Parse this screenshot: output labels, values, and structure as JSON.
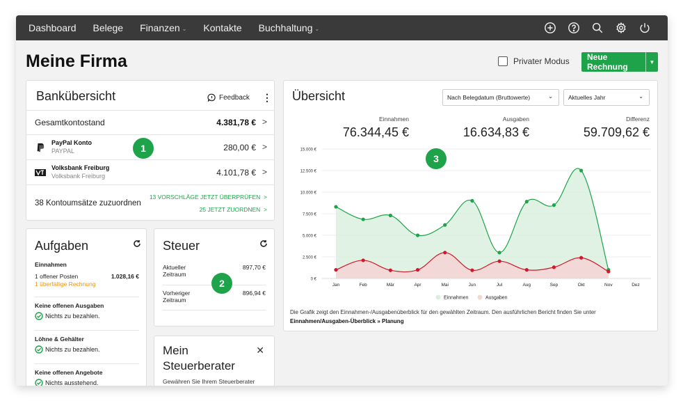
{
  "nav": {
    "items": [
      {
        "label": "Dashboard",
        "dropdown": false
      },
      {
        "label": "Belege",
        "dropdown": false
      },
      {
        "label": "Finanzen",
        "dropdown": true
      },
      {
        "label": "Kontakte",
        "dropdown": false
      },
      {
        "label": "Buchhaltung",
        "dropdown": true
      }
    ],
    "icons": [
      "plus-circle-icon",
      "help-icon",
      "search-icon",
      "gear-icon",
      "power-icon"
    ]
  },
  "page": {
    "title": "Meine Firma",
    "private_mode_label": "Privater Modus",
    "new_invoice_label": "Neue Rechnung"
  },
  "bank": {
    "title": "Banküber­sicht",
    "feedback_label": "Feedback",
    "total_label": "Gesamtkontostand",
    "total_value": "4.381,78 €",
    "accounts": [
      {
        "name": "PayPal Konto",
        "sub": "PAYPAL",
        "amount": "280,00 €",
        "logo": "paypal-logo-icon"
      },
      {
        "name": "Volksbank Freiburg",
        "sub": "Volksbank Freiburg",
        "amount": "4.101,78 €",
        "logo": "volksbank-logo-icon"
      }
    ],
    "unassigned_label": "38 Kontoumsätze zuzuordnen",
    "action_review": "13 VORSCHLÄGE JETZT ÜBERPRÜFEN",
    "action_assign": "25 JETZT ZUORDNEN"
  },
  "badges": [
    "1",
    "2",
    "3"
  ],
  "tasks": {
    "title": "Aufgaben",
    "income_heading": "Einnahmen",
    "open_items_label": "1 offener Posten",
    "open_items_value": "1.028,16 €",
    "overdue_label": "1 überfällige Rechnung",
    "expenses_heading": "Keine offenen Ausgaben",
    "expenses_status": "Nichts zu bezahlen.",
    "wages_heading": "Löhne & Gehälter",
    "wages_status": "Nichts zu bezahlen.",
    "offers_heading": "Keine offenen Angebote",
    "offers_status": "Nichts ausstehend."
  },
  "tax": {
    "title": "Steuer",
    "current_label": "Aktueller Zeitraum",
    "current_value": "897,70 €",
    "previous_label": "Vorheriger Zeitraum",
    "previous_value": "896,94 €"
  },
  "advisor": {
    "title": "Mein Steuerberater",
    "description": "Gewähren Sie Ihrem Steuerberater"
  },
  "overview": {
    "title": "Übersicht",
    "filter_select": "Nach Belegdatum (Bruttowerte)",
    "period_select": "Aktuelles Jahr",
    "kpis": [
      {
        "label": "Einnahmen",
        "value": "76.344,45 €"
      },
      {
        "label": "Ausgaben",
        "value": "16.634,83 €"
      },
      {
        "label": "Differenz",
        "value": "59.709,62 €"
      }
    ],
    "footer_text": "Die Grafik zeigt den Einnahmen-/Ausgabenüberblick für den gewählten Zeitraum. Den ausführlichen Bericht finden Sie unter",
    "footer_link": "Einnahmen/Ausgaben-Überblick » Planung"
  },
  "chart_data": {
    "type": "area",
    "categories": [
      "Jan",
      "Feb",
      "Mär",
      "Apr",
      "Mai",
      "Jun",
      "Jul",
      "Aug",
      "Sep",
      "Okt",
      "Nov",
      "Dez"
    ],
    "series": [
      {
        "name": "Einnahmen",
        "color": "#1ea34a",
        "fill": "#d9f0df",
        "values": [
          8300,
          6850,
          7300,
          5000,
          6200,
          9000,
          3000,
          8900,
          8500,
          12500,
          1000,
          null
        ]
      },
      {
        "name": "Ausgaben",
        "color": "#d0182b",
        "fill": "#f6d3d3",
        "values": [
          1000,
          2100,
          950,
          1000,
          3000,
          950,
          2000,
          1000,
          1300,
          2400,
          800,
          null
        ]
      }
    ],
    "yticks": [
      "15.000 €",
      "12.500 €",
      "10.000 €",
      "7.500 €",
      "5.000 €",
      "2.500 €",
      "0 €"
    ],
    "ylim": [
      0,
      15000
    ],
    "legend": [
      "Einnahmen",
      "Ausgaben"
    ],
    "legend_colors": [
      "#d9f0df",
      "#f2d9cf"
    ]
  }
}
